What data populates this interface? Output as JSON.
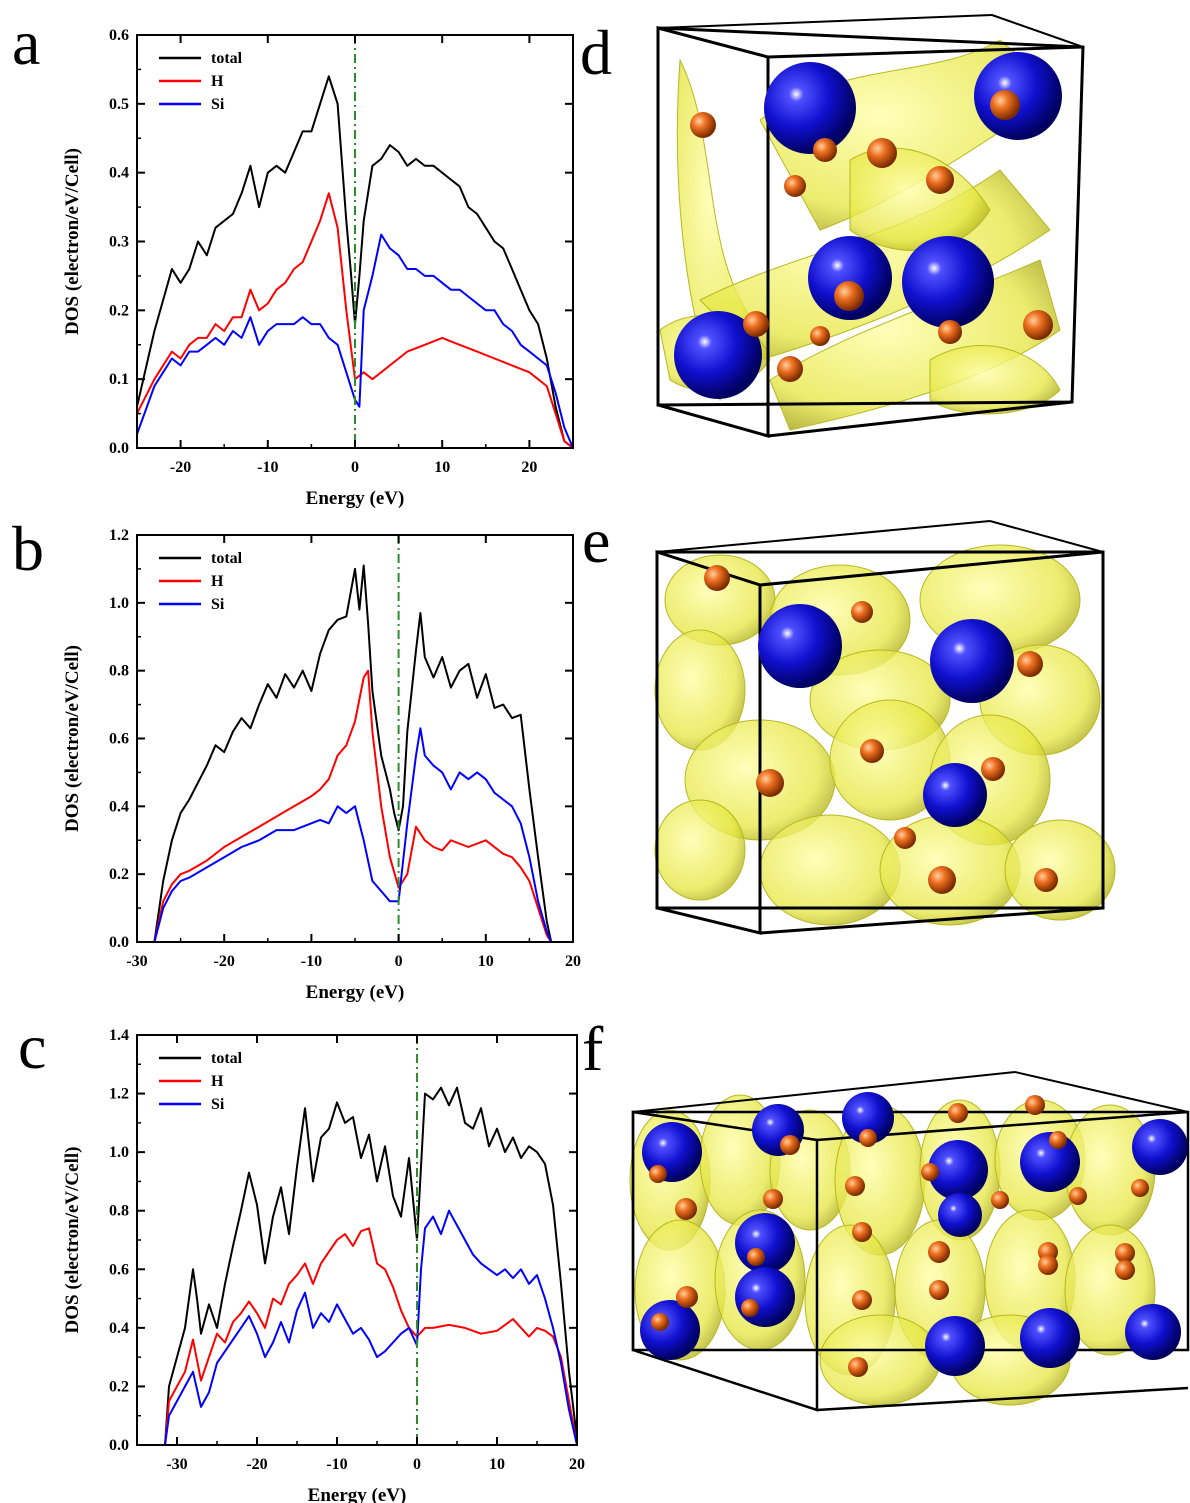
{
  "colors": {
    "total": "#000000",
    "H": "#ff0000",
    "Si": "#0000ff",
    "fermi": "#2e8b2e",
    "silicon_atom": "#1010d0",
    "hydrogen_atom": "#e06010",
    "isosurface": "#e6e640"
  },
  "chart_data": [
    {
      "type": "line",
      "panel": "a",
      "xlabel": "Energy (eV)",
      "ylabel": "DOS (electron/eV/Cell)",
      "xlim": [
        -25,
        25
      ],
      "ylim": [
        0,
        0.6
      ],
      "xticks": [
        -20,
        -10,
        0,
        10,
        20
      ],
      "xtick_labels": [
        "-20",
        "-10",
        "0",
        "10",
        "20"
      ],
      "yticks": [
        0.0,
        0.1,
        0.2,
        0.3,
        0.4,
        0.5,
        0.6
      ],
      "ytick_labels": [
        "0.0",
        "0.1",
        "0.2",
        "0.3",
        "0.4",
        "0.5",
        "0.6"
      ],
      "legend": "top-left",
      "fermi_line": 0,
      "series": [
        {
          "name": "total",
          "color_key": "total",
          "x": [
            -25,
            -23,
            -21,
            -20,
            -19,
            -18,
            -17,
            -16,
            -15,
            -14,
            -13,
            -12,
            -11,
            -10,
            -9,
            -8,
            -7,
            -6,
            -5,
            -4,
            -3,
            -2,
            -1,
            -0.5,
            0,
            0.5,
            1,
            2,
            3,
            4,
            5,
            6,
            7,
            8,
            9,
            10,
            11,
            12,
            13,
            14,
            15,
            16,
            17,
            18,
            19,
            20,
            21,
            22,
            23,
            24,
            25
          ],
          "y": [
            0.06,
            0.17,
            0.26,
            0.24,
            0.26,
            0.3,
            0.28,
            0.32,
            0.33,
            0.34,
            0.37,
            0.41,
            0.35,
            0.4,
            0.41,
            0.4,
            0.43,
            0.46,
            0.46,
            0.5,
            0.54,
            0.5,
            0.33,
            0.26,
            0.18,
            0.25,
            0.33,
            0.41,
            0.42,
            0.44,
            0.43,
            0.41,
            0.42,
            0.41,
            0.41,
            0.4,
            0.39,
            0.38,
            0.35,
            0.34,
            0.32,
            0.3,
            0.29,
            0.26,
            0.23,
            0.2,
            0.18,
            0.13,
            0.06,
            0.01,
            0.0
          ]
        },
        {
          "name": "H",
          "color_key": "H",
          "x": [
            -25,
            -23,
            -21,
            -20,
            -19,
            -18,
            -17,
            -16,
            -15,
            -14,
            -13,
            -12,
            -11,
            -10,
            -9,
            -8,
            -7,
            -6,
            -5,
            -4,
            -3,
            -2,
            -1,
            0,
            1,
            2,
            4,
            6,
            8,
            10,
            12,
            14,
            16,
            18,
            20,
            22,
            23,
            24,
            25
          ],
          "y": [
            0.05,
            0.1,
            0.14,
            0.13,
            0.15,
            0.16,
            0.16,
            0.18,
            0.17,
            0.19,
            0.19,
            0.23,
            0.2,
            0.21,
            0.23,
            0.24,
            0.26,
            0.27,
            0.3,
            0.33,
            0.37,
            0.32,
            0.2,
            0.1,
            0.11,
            0.1,
            0.12,
            0.14,
            0.15,
            0.16,
            0.15,
            0.14,
            0.13,
            0.12,
            0.11,
            0.09,
            0.05,
            0.01,
            0.0
          ]
        },
        {
          "name": "Si",
          "color_key": "Si",
          "x": [
            -25,
            -23,
            -21,
            -20,
            -19,
            -18,
            -17,
            -16,
            -15,
            -14,
            -13,
            -12,
            -11,
            -10,
            -9,
            -8,
            -7,
            -6,
            -5,
            -4,
            -3,
            -2,
            -1,
            0,
            0.5,
            1,
            2,
            3,
            4,
            5,
            6,
            7,
            8,
            9,
            10,
            11,
            12,
            13,
            14,
            15,
            16,
            17,
            18,
            19,
            20,
            21,
            22,
            23,
            24,
            25
          ],
          "y": [
            0.02,
            0.09,
            0.13,
            0.12,
            0.14,
            0.14,
            0.15,
            0.16,
            0.15,
            0.17,
            0.16,
            0.19,
            0.15,
            0.17,
            0.18,
            0.18,
            0.18,
            0.19,
            0.18,
            0.18,
            0.16,
            0.15,
            0.11,
            0.07,
            0.06,
            0.2,
            0.25,
            0.31,
            0.29,
            0.28,
            0.26,
            0.26,
            0.25,
            0.25,
            0.24,
            0.23,
            0.23,
            0.22,
            0.21,
            0.2,
            0.2,
            0.18,
            0.17,
            0.15,
            0.14,
            0.13,
            0.12,
            0.08,
            0.03,
            0.0
          ]
        }
      ]
    },
    {
      "type": "line",
      "panel": "b",
      "xlabel": "Energy (eV)",
      "ylabel": "DOS (electron/eV/Cell)",
      "xlim": [
        -30,
        20
      ],
      "ylim": [
        0,
        1.2
      ],
      "xticks": [
        -30,
        -20,
        -10,
        0,
        10,
        20
      ],
      "xtick_labels": [
        "-30",
        "-20",
        "-10",
        "0",
        "10",
        "20"
      ],
      "yticks": [
        0.0,
        0.2,
        0.4,
        0.6,
        0.8,
        1.0,
        1.2
      ],
      "ytick_labels": [
        "0.0",
        "0.2",
        "0.4",
        "0.6",
        "0.8",
        "1.0",
        "1.2"
      ],
      "legend": "top-left",
      "fermi_line": 0,
      "series": [
        {
          "name": "total",
          "color_key": "total",
          "x": [
            -28,
            -27,
            -26,
            -25,
            -24,
            -23,
            -22,
            -21,
            -20,
            -19,
            -18,
            -17,
            -16,
            -15,
            -14,
            -13,
            -12,
            -11,
            -10,
            -9,
            -8,
            -7,
            -6,
            -5,
            -4.5,
            -4,
            -3.5,
            -3,
            -2,
            -1,
            -0.5,
            0,
            0.5,
            1,
            2,
            2.5,
            3,
            4,
            5,
            6,
            7,
            8,
            9,
            10,
            11,
            12,
            13,
            14,
            15,
            16,
            17,
            17.5
          ],
          "y": [
            0.0,
            0.18,
            0.3,
            0.38,
            0.42,
            0.47,
            0.52,
            0.58,
            0.56,
            0.62,
            0.66,
            0.63,
            0.7,
            0.76,
            0.72,
            0.79,
            0.75,
            0.8,
            0.74,
            0.85,
            0.92,
            0.95,
            0.96,
            1.1,
            0.98,
            1.11,
            0.94,
            0.74,
            0.55,
            0.45,
            0.38,
            0.33,
            0.4,
            0.62,
            0.86,
            0.97,
            0.84,
            0.78,
            0.84,
            0.75,
            0.8,
            0.82,
            0.72,
            0.79,
            0.69,
            0.7,
            0.66,
            0.67,
            0.45,
            0.25,
            0.06,
            0.0
          ]
        },
        {
          "name": "H",
          "color_key": "H",
          "x": [
            -28,
            -27,
            -26,
            -25,
            -24,
            -22,
            -20,
            -18,
            -16,
            -14,
            -12,
            -10,
            -9,
            -8,
            -7,
            -6,
            -5,
            -4,
            -3.5,
            -3,
            -2,
            -1,
            0,
            1,
            2,
            3,
            4,
            5,
            6,
            8,
            10,
            12,
            13,
            14,
            15,
            16,
            17,
            17.5
          ],
          "y": [
            0.0,
            0.12,
            0.17,
            0.2,
            0.21,
            0.24,
            0.28,
            0.31,
            0.34,
            0.37,
            0.4,
            0.43,
            0.45,
            0.48,
            0.55,
            0.58,
            0.65,
            0.78,
            0.8,
            0.62,
            0.4,
            0.25,
            0.16,
            0.2,
            0.34,
            0.3,
            0.28,
            0.27,
            0.3,
            0.28,
            0.3,
            0.26,
            0.25,
            0.22,
            0.18,
            0.1,
            0.02,
            0.0
          ]
        },
        {
          "name": "Si",
          "color_key": "Si",
          "x": [
            -28,
            -27,
            -26,
            -25,
            -24,
            -22,
            -20,
            -18,
            -16,
            -14,
            -12,
            -10,
            -9,
            -8,
            -7,
            -6,
            -5,
            -4,
            -3,
            -2,
            -1,
            0,
            1,
            2,
            2.5,
            3,
            4,
            5,
            6,
            7,
            8,
            9,
            10,
            11,
            12,
            13,
            14,
            15,
            16,
            17,
            17.5
          ],
          "y": [
            0.0,
            0.1,
            0.15,
            0.18,
            0.19,
            0.22,
            0.25,
            0.28,
            0.3,
            0.33,
            0.33,
            0.35,
            0.36,
            0.35,
            0.4,
            0.38,
            0.4,
            0.3,
            0.18,
            0.15,
            0.12,
            0.12,
            0.35,
            0.55,
            0.63,
            0.55,
            0.52,
            0.5,
            0.45,
            0.5,
            0.48,
            0.5,
            0.48,
            0.44,
            0.42,
            0.4,
            0.35,
            0.25,
            0.12,
            0.03,
            0.0
          ]
        }
      ]
    },
    {
      "type": "line",
      "panel": "c",
      "xlabel": "Energy (eV)",
      "ylabel": "DOS (electron/eV/Cell)",
      "xlim": [
        -35,
        20
      ],
      "ylim": [
        0,
        1.4
      ],
      "xticks": [
        -30,
        -20,
        -10,
        0,
        10,
        20
      ],
      "xtick_labels": [
        "-30",
        "-20",
        "-10",
        "0",
        "10",
        "20"
      ],
      "yticks": [
        0.0,
        0.2,
        0.4,
        0.6,
        0.8,
        1.0,
        1.2,
        1.4
      ],
      "ytick_labels": [
        "0.0",
        "0.2",
        "0.4",
        "0.6",
        "0.8",
        "1.0",
        "1.2",
        "1.4"
      ],
      "legend": "top-left",
      "fermi_line": 0,
      "series": [
        {
          "name": "total",
          "color_key": "total",
          "x": [
            -31.5,
            -31,
            -30,
            -29,
            -28,
            -27.5,
            -27,
            -26,
            -25,
            -24,
            -23,
            -22,
            -21,
            -20,
            -19,
            -18,
            -17,
            -16,
            -15,
            -14,
            -13,
            -12,
            -11,
            -10,
            -9,
            -8,
            -7,
            -6,
            -5,
            -4,
            -3,
            -2,
            -1,
            0,
            0.5,
            1,
            2,
            3,
            4,
            5,
            6,
            7,
            8,
            9,
            10,
            11,
            12,
            13,
            14,
            15,
            16,
            17,
            18,
            19,
            20
          ],
          "y": [
            0.0,
            0.2,
            0.3,
            0.4,
            0.6,
            0.5,
            0.38,
            0.48,
            0.4,
            0.55,
            0.68,
            0.8,
            0.93,
            0.82,
            0.62,
            0.78,
            0.88,
            0.72,
            0.95,
            1.15,
            0.9,
            1.05,
            1.08,
            1.17,
            1.1,
            1.12,
            0.98,
            1.06,
            0.9,
            1.02,
            0.85,
            0.78,
            0.98,
            0.7,
            0.95,
            1.2,
            1.18,
            1.22,
            1.16,
            1.22,
            1.1,
            1.08,
            1.15,
            1.02,
            1.08,
            1.0,
            1.05,
            0.98,
            1.02,
            1.0,
            0.96,
            0.82,
            0.55,
            0.25,
            0.02
          ]
        },
        {
          "name": "H",
          "color_key": "H",
          "x": [
            -31.5,
            -31,
            -30,
            -29,
            -28,
            -27,
            -26,
            -25,
            -24,
            -23,
            -22,
            -21,
            -20,
            -19,
            -18,
            -17,
            -16,
            -15,
            -14,
            -13,
            -12,
            -11,
            -10,
            -9,
            -8,
            -7,
            -6,
            -5,
            -4,
            -3,
            -2,
            -1,
            0,
            1,
            2,
            4,
            6,
            8,
            10,
            12,
            14,
            15,
            16,
            17,
            18,
            19,
            20
          ],
          "y": [
            0.0,
            0.15,
            0.2,
            0.25,
            0.36,
            0.22,
            0.3,
            0.38,
            0.35,
            0.42,
            0.45,
            0.49,
            0.45,
            0.4,
            0.5,
            0.48,
            0.55,
            0.58,
            0.62,
            0.55,
            0.62,
            0.66,
            0.7,
            0.72,
            0.68,
            0.73,
            0.74,
            0.62,
            0.6,
            0.54,
            0.46,
            0.4,
            0.37,
            0.4,
            0.4,
            0.41,
            0.4,
            0.38,
            0.39,
            0.43,
            0.37,
            0.4,
            0.39,
            0.37,
            0.3,
            0.15,
            0.0
          ]
        },
        {
          "name": "Si",
          "color_key": "Si",
          "x": [
            -31.5,
            -31,
            -30,
            -29,
            -28,
            -27,
            -26,
            -25,
            -24,
            -23,
            -22,
            -21,
            -20,
            -19,
            -18,
            -17,
            -16,
            -15,
            -14,
            -13,
            -12,
            -11,
            -10,
            -9,
            -8,
            -7,
            -6,
            -5,
            -4,
            -3,
            -2,
            -1,
            0,
            0.5,
            1,
            2,
            3,
            4,
            5,
            6,
            7,
            8,
            9,
            10,
            11,
            12,
            13,
            14,
            15,
            16,
            17,
            18,
            19,
            20
          ],
          "y": [
            0.0,
            0.1,
            0.15,
            0.2,
            0.25,
            0.13,
            0.18,
            0.28,
            0.32,
            0.36,
            0.4,
            0.44,
            0.38,
            0.3,
            0.35,
            0.42,
            0.35,
            0.46,
            0.52,
            0.4,
            0.45,
            0.42,
            0.48,
            0.43,
            0.38,
            0.4,
            0.36,
            0.3,
            0.32,
            0.35,
            0.38,
            0.4,
            0.34,
            0.6,
            0.74,
            0.78,
            0.72,
            0.8,
            0.75,
            0.7,
            0.65,
            0.62,
            0.6,
            0.58,
            0.6,
            0.57,
            0.6,
            0.55,
            0.58,
            0.5,
            0.4,
            0.28,
            0.12,
            0.0
          ]
        }
      ]
    }
  ],
  "panels": {
    "a": "a",
    "b": "b",
    "c": "c",
    "d": "d",
    "e": "e",
    "f": "f"
  }
}
